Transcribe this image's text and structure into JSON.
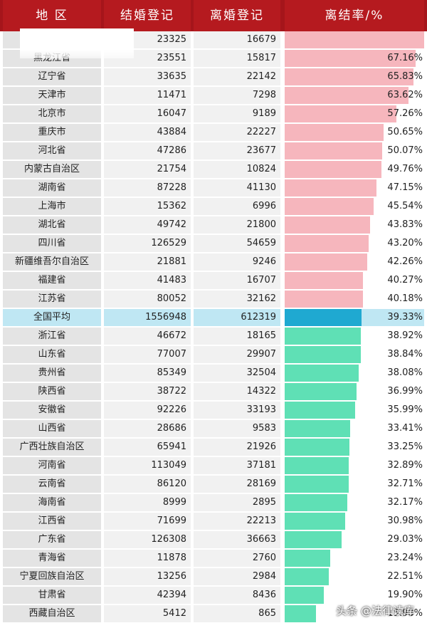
{
  "header": {
    "region": "地  区",
    "marriage": "结婚登记",
    "divorce": "离婚登记",
    "ratio": "离结率/%"
  },
  "colors": {
    "header_bg": "#b51a1f",
    "above_avg_bar": "#f6b6bd",
    "below_avg_bar": "#5fe0b5",
    "average_bar": "#1fa9d1",
    "average_row_bg": "#bfe7f3"
  },
  "watermark": "头条 @法律读库",
  "chart_data": {
    "type": "table",
    "columns": [
      "地 区",
      "结婚登记",
      "离婚登记",
      "离结率/%"
    ],
    "max_ratio": 71.5,
    "rows": [
      {
        "region": "",
        "marriage": "23325",
        "divorce": "16679",
        "ratio": "",
        "ratio_value": 71.5,
        "group": "above"
      },
      {
        "region": "黑龙江省",
        "marriage": "23551",
        "divorce": "15817",
        "ratio": "67.16%",
        "ratio_value": 67.16,
        "group": "above"
      },
      {
        "region": "辽宁省",
        "marriage": "33635",
        "divorce": "22142",
        "ratio": "65.83%",
        "ratio_value": 65.83,
        "group": "above"
      },
      {
        "region": "天津市",
        "marriage": "11471",
        "divorce": "7298",
        "ratio": "63.62%",
        "ratio_value": 63.62,
        "group": "above"
      },
      {
        "region": "北京市",
        "marriage": "16047",
        "divorce": "9189",
        "ratio": "57.26%",
        "ratio_value": 57.26,
        "group": "above"
      },
      {
        "region": "重庆市",
        "marriage": "43884",
        "divorce": "22227",
        "ratio": "50.65%",
        "ratio_value": 50.65,
        "group": "above"
      },
      {
        "region": "河北省",
        "marriage": "47286",
        "divorce": "23677",
        "ratio": "50.07%",
        "ratio_value": 50.07,
        "group": "above"
      },
      {
        "region": "内蒙古自治区",
        "marriage": "21754",
        "divorce": "10824",
        "ratio": "49.76%",
        "ratio_value": 49.76,
        "group": "above"
      },
      {
        "region": "湖南省",
        "marriage": "87228",
        "divorce": "41130",
        "ratio": "47.15%",
        "ratio_value": 47.15,
        "group": "above"
      },
      {
        "region": "上海市",
        "marriage": "15362",
        "divorce": "6996",
        "ratio": "45.54%",
        "ratio_value": 45.54,
        "group": "above"
      },
      {
        "region": "湖北省",
        "marriage": "49742",
        "divorce": "21800",
        "ratio": "43.83%",
        "ratio_value": 43.83,
        "group": "above"
      },
      {
        "region": "四川省",
        "marriage": "126529",
        "divorce": "54659",
        "ratio": "43.20%",
        "ratio_value": 43.2,
        "group": "above"
      },
      {
        "region": "新疆维吾尔自治区",
        "marriage": "21881",
        "divorce": "9246",
        "ratio": "42.26%",
        "ratio_value": 42.26,
        "group": "above"
      },
      {
        "region": "福建省",
        "marriage": "41483",
        "divorce": "16707",
        "ratio": "40.27%",
        "ratio_value": 40.27,
        "group": "above"
      },
      {
        "region": "江苏省",
        "marriage": "80052",
        "divorce": "32162",
        "ratio": "40.18%",
        "ratio_value": 40.18,
        "group": "above"
      },
      {
        "region": "全国平均",
        "marriage": "1556948",
        "divorce": "612319",
        "ratio": "39.33%",
        "ratio_value": 39.33,
        "group": "average"
      },
      {
        "region": "浙江省",
        "marriage": "46672",
        "divorce": "18165",
        "ratio": "38.92%",
        "ratio_value": 38.92,
        "group": "below"
      },
      {
        "region": "山东省",
        "marriage": "77007",
        "divorce": "29907",
        "ratio": "38.84%",
        "ratio_value": 38.84,
        "group": "below"
      },
      {
        "region": "贵州省",
        "marriage": "85349",
        "divorce": "32504",
        "ratio": "38.08%",
        "ratio_value": 38.08,
        "group": "below"
      },
      {
        "region": "陕西省",
        "marriage": "38722",
        "divorce": "14322",
        "ratio": "36.99%",
        "ratio_value": 36.99,
        "group": "below"
      },
      {
        "region": "安徽省",
        "marriage": "92226",
        "divorce": "33193",
        "ratio": "35.99%",
        "ratio_value": 35.99,
        "group": "below"
      },
      {
        "region": "山西省",
        "marriage": "28686",
        "divorce": "9583",
        "ratio": "33.41%",
        "ratio_value": 33.41,
        "group": "below"
      },
      {
        "region": "广西壮族自治区",
        "marriage": "65941",
        "divorce": "21926",
        "ratio": "33.25%",
        "ratio_value": 33.25,
        "group": "below"
      },
      {
        "region": "河南省",
        "marriage": "113049",
        "divorce": "37181",
        "ratio": "32.89%",
        "ratio_value": 32.89,
        "group": "below"
      },
      {
        "region": "云南省",
        "marriage": "86120",
        "divorce": "28169",
        "ratio": "32.71%",
        "ratio_value": 32.71,
        "group": "below"
      },
      {
        "region": "海南省",
        "marriage": "8999",
        "divorce": "2895",
        "ratio": "32.17%",
        "ratio_value": 32.17,
        "group": "below"
      },
      {
        "region": "江西省",
        "marriage": "71699",
        "divorce": "22213",
        "ratio": "30.98%",
        "ratio_value": 30.98,
        "group": "below"
      },
      {
        "region": "广东省",
        "marriage": "126308",
        "divorce": "36663",
        "ratio": "29.03%",
        "ratio_value": 29.03,
        "group": "below"
      },
      {
        "region": "青海省",
        "marriage": "11878",
        "divorce": "2760",
        "ratio": "23.24%",
        "ratio_value": 23.24,
        "group": "below"
      },
      {
        "region": "宁夏回族自治区",
        "marriage": "13256",
        "divorce": "2984",
        "ratio": "22.51%",
        "ratio_value": 22.51,
        "group": "below"
      },
      {
        "region": "甘肃省",
        "marriage": "42394",
        "divorce": "8436",
        "ratio": "19.90%",
        "ratio_value": 19.9,
        "group": "below"
      },
      {
        "region": "西藏自治区",
        "marriage": "5412",
        "divorce": "865",
        "ratio": "15.98%",
        "ratio_value": 15.98,
        "group": "below"
      }
    ]
  }
}
